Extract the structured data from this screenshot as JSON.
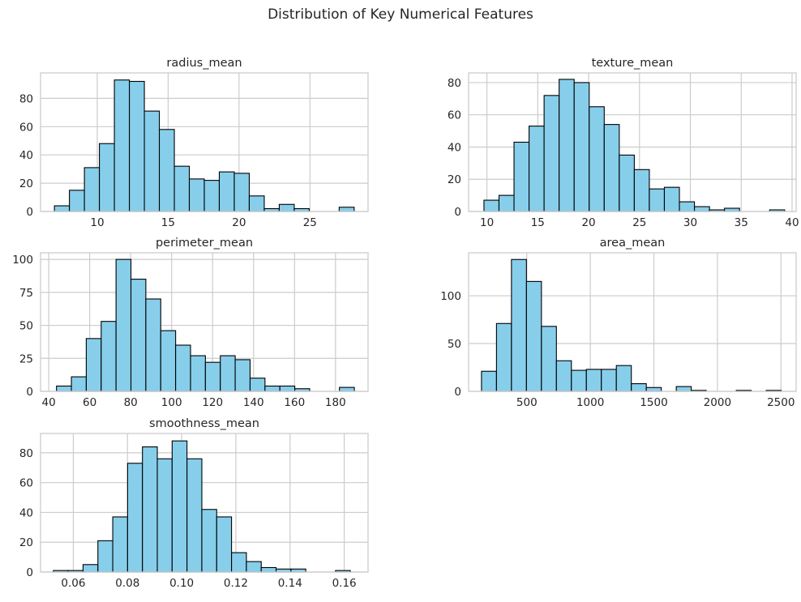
{
  "figure": {
    "title": "Distribution of Key Numerical Features"
  },
  "style": {
    "bar_fill": "#87CEEB",
    "bar_edge": "#000000",
    "grid": "#cccccc",
    "frame": "#cccccc",
    "background": "#ffffff"
  },
  "chart_data": [
    {
      "type": "bar",
      "title": "radius_mean",
      "xlabel": "",
      "ylabel": "",
      "xlim": [
        6.0,
        29.1
      ],
      "ylim": [
        0,
        98
      ],
      "xticks": [
        10,
        15,
        20,
        25
      ],
      "yticks": [
        0,
        20,
        40,
        60,
        80
      ],
      "grid": true,
      "bin_start": 6.98,
      "bin_width": 1.057,
      "values": [
        4,
        15,
        31,
        48,
        93,
        92,
        71,
        58,
        32,
        23,
        22,
        28,
        27,
        11,
        2,
        5,
        2,
        0,
        0,
        3
      ]
    },
    {
      "type": "bar",
      "title": "texture_mean",
      "xlabel": "",
      "ylabel": "",
      "xlim": [
        8.2,
        40.4
      ],
      "ylim": [
        0,
        86
      ],
      "xticks": [
        10,
        15,
        20,
        25,
        30,
        35,
        40
      ],
      "yticks": [
        0,
        20,
        40,
        60,
        80
      ],
      "grid": true,
      "bin_start": 9.71,
      "bin_width": 1.478,
      "values": [
        7,
        10,
        43,
        53,
        72,
        82,
        80,
        65,
        54,
        35,
        26,
        14,
        15,
        6,
        3,
        1,
        2,
        0,
        0,
        1
      ]
    },
    {
      "type": "bar",
      "title": "perimeter_mean",
      "xlabel": "",
      "ylabel": "",
      "xlim": [
        36.0,
        195.9
      ],
      "ylim": [
        0,
        105
      ],
      "xticks": [
        40,
        60,
        80,
        100,
        120,
        140,
        160,
        180
      ],
      "yticks": [
        0,
        25,
        50,
        75,
        100
      ],
      "grid": true,
      "bin_start": 43.79,
      "bin_width": 7.27,
      "values": [
        4,
        11,
        40,
        53,
        100,
        85,
        70,
        46,
        35,
        27,
        22,
        27,
        24,
        10,
        4,
        4,
        2,
        0,
        0,
        3
      ]
    },
    {
      "type": "bar",
      "title": "area_mean",
      "xlabel": "",
      "ylabel": "",
      "xlim": [
        42.0,
        2619.5
      ],
      "ylim": [
        0,
        145
      ],
      "xticks": [
        500,
        1000,
        1500,
        2000,
        2500
      ],
      "yticks": [
        0,
        50,
        100
      ],
      "grid": true,
      "bin_start": 143.5,
      "bin_width": 117.9,
      "values": [
        21,
        71,
        138,
        115,
        68,
        32,
        22,
        23,
        23,
        27,
        8,
        4,
        0,
        5,
        1,
        0,
        0,
        1,
        0,
        1
      ]
    },
    {
      "type": "bar",
      "title": "smoothness_mean",
      "xlabel": "",
      "ylabel": "",
      "xlim": [
        0.0479,
        0.1688
      ],
      "ylim": [
        0,
        93
      ],
      "xticks": [
        0.06,
        0.08,
        0.1,
        0.12,
        0.14,
        0.16
      ],
      "yticks": [
        0,
        20,
        40,
        60,
        80
      ],
      "grid": true,
      "bin_start": 0.05263,
      "bin_width": 0.005481,
      "values": [
        1,
        1,
        5,
        21,
        37,
        73,
        84,
        76,
        88,
        76,
        42,
        37,
        13,
        7,
        3,
        2,
        2,
        0,
        0,
        1
      ]
    }
  ]
}
